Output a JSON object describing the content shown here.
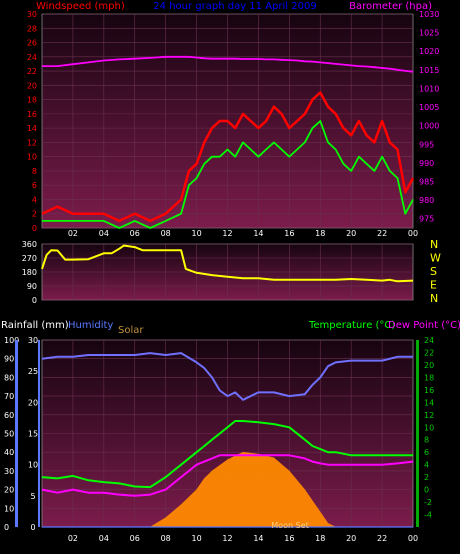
{
  "title": "24 hour graph day 11 April 2009",
  "colors": {
    "background": "#000000",
    "plot_top": "#1a0612",
    "plot_bottom": "#7a1a4a",
    "grid": "#6a3050",
    "windspeed": "#ff0000",
    "wind_avg": "#00ff00",
    "barometer": "#ff00ff",
    "direction": "#ffff00",
    "rainfall": "#5a78ff",
    "humidity": "#7070ff",
    "solar": "#ff8800",
    "temperature": "#00ff00",
    "dewpoint": "#ff00ff",
    "axis_left": "#ff0000",
    "axis_right_baro": "#ff00ff",
    "axis_temp": "#00cc00",
    "axis_hum": "#5a78ff",
    "dir_labels": "#ffff00",
    "title_color": "#0000ff"
  },
  "x_ticks": [
    "02",
    "04",
    "06",
    "08",
    "10",
    "12",
    "14",
    "16",
    "18",
    "20",
    "22",
    "00"
  ],
  "chart_data": [
    {
      "type": "line",
      "name": "wind-barometer",
      "labels": {
        "left_title": "Windspeed (mph)",
        "right_title": "Barometer (hpa)"
      },
      "y_left": {
        "min": 0,
        "max": 30,
        "ticks": [
          0,
          2,
          4,
          6,
          8,
          10,
          12,
          14,
          16,
          18,
          20,
          22,
          24,
          26,
          28,
          30
        ]
      },
      "y_right": {
        "min": 972.5,
        "max": 1030,
        "ticks": [
          975,
          980,
          985,
          990,
          995,
          1000,
          1005,
          1010,
          1015,
          1020,
          1025,
          1030
        ]
      },
      "hours": [
        0,
        1,
        2,
        3,
        4,
        5,
        6,
        7,
        8,
        9,
        9.5,
        10,
        10.5,
        11,
        11.5,
        12,
        12.5,
        13,
        13.5,
        14,
        14.5,
        15,
        15.5,
        16,
        16.5,
        17,
        17.5,
        18,
        18.5,
        19,
        19.5,
        20,
        20.5,
        21,
        21.5,
        22,
        22.5,
        23,
        23.5,
        24
      ],
      "series": [
        {
          "name": "Windspeed",
          "axis": "left",
          "values": [
            2,
            3,
            2,
            2,
            2,
            1,
            2,
            1,
            2,
            4,
            8,
            9,
            12,
            14,
            15,
            15,
            14,
            16,
            15,
            14,
            15,
            17,
            16,
            14,
            15,
            16,
            18,
            19,
            17,
            16,
            14,
            13,
            15,
            13,
            12,
            15,
            12,
            11,
            5,
            7
          ]
        },
        {
          "name": "Average",
          "axis": "left",
          "values": [
            1,
            1,
            1,
            1,
            1,
            0,
            1,
            0,
            1,
            2,
            6,
            7,
            9,
            10,
            10,
            11,
            10,
            12,
            11,
            10,
            11,
            12,
            11,
            10,
            11,
            12,
            14,
            15,
            12,
            11,
            9,
            8,
            10,
            9,
            8,
            10,
            8,
            7,
            2,
            4
          ]
        },
        {
          "name": "Barometer",
          "axis": "right",
          "values": [
            1016,
            1016,
            1016.5,
            1017,
            1017.5,
            1017.8,
            1018,
            1018.2,
            1018.5,
            1018.5,
            1018.5,
            1018.3,
            1018.1,
            1018,
            1018,
            1018,
            1018,
            1017.9,
            1017.9,
            1017.9,
            1017.8,
            1017.8,
            1017.7,
            1017.6,
            1017.5,
            1017.3,
            1017.2,
            1017,
            1016.8,
            1016.6,
            1016.4,
            1016.2,
            1016,
            1015.9,
            1015.7,
            1015.5,
            1015.3,
            1015,
            1014.7,
            1014.5
          ]
        }
      ]
    },
    {
      "type": "line",
      "name": "wind-direction",
      "y": {
        "min": 0,
        "max": 360,
        "ticks": [
          0,
          90,
          180,
          270,
          360
        ]
      },
      "direction_labels": [
        "N",
        "W",
        "S",
        "E",
        "N"
      ],
      "hours": [
        0,
        0.3,
        0.6,
        1,
        1.5,
        2,
        3,
        4,
        4.5,
        5,
        5.3,
        6,
        6.5,
        7,
        8,
        9,
        9.3,
        10,
        11,
        12,
        13,
        14,
        15,
        16,
        17,
        18,
        19,
        20,
        21,
        22,
        22.5,
        23,
        24
      ],
      "series": [
        {
          "name": "Direction",
          "values": [
            200,
            290,
            320,
            318,
            260,
            260,
            262,
            300,
            300,
            330,
            350,
            340,
            320,
            320,
            320,
            320,
            200,
            175,
            160,
            150,
            140,
            140,
            130,
            130,
            130,
            130,
            130,
            135,
            130,
            125,
            130,
            120,
            125
          ]
        }
      ]
    },
    {
      "type": "line",
      "name": "temp-humidity-rain-solar",
      "labels": {
        "left_title_rain": "Rainfall (mm)",
        "left_title_hum": "Humidity",
        "solar_title": "Solar",
        "right_title_temp": "Temperature (°C)",
        "right_title_dew": "Dew Point (°C)",
        "annotation": "Moon Set"
      },
      "y_rain": {
        "min": 0,
        "max": 100,
        "ticks": [
          0,
          10,
          20,
          30,
          40,
          50,
          60,
          70,
          80,
          90,
          100
        ]
      },
      "y_humidity": {
        "min": 0,
        "max": 30,
        "ticks": [
          0,
          5,
          10,
          15,
          20,
          25,
          30
        ]
      },
      "y_temp": {
        "min": -6,
        "max": 24,
        "ticks": [
          -4,
          -2,
          0,
          2,
          4,
          6,
          8,
          10,
          12,
          14,
          16,
          18,
          20,
          22,
          24
        ]
      },
      "hours": [
        0,
        1,
        2,
        3,
        4,
        5,
        6,
        7,
        8,
        9,
        10,
        10.5,
        11,
        11.5,
        12,
        12.5,
        13,
        14,
        15,
        16,
        17,
        17.5,
        18,
        18.5,
        19,
        20,
        21,
        22,
        23,
        24
      ],
      "series": [
        {
          "name": "Humidity",
          "axis": "humidity",
          "values": [
            90,
            91,
            91,
            92,
            92,
            92,
            92,
            93,
            92,
            93,
            88,
            85,
            80,
            73,
            70,
            72,
            68,
            72,
            72,
            70,
            71,
            76,
            80,
            86,
            88,
            89,
            89,
            89,
            91,
            91
          ]
        },
        {
          "name": "Temperature",
          "axis": "temp",
          "values": [
            2,
            1.8,
            2.2,
            1.5,
            1.2,
            1,
            0.5,
            0.4,
            2,
            4,
            6,
            7,
            8,
            9,
            10,
            11,
            11,
            10.8,
            10.5,
            10,
            8,
            7,
            6.5,
            6,
            6,
            5.5,
            5.5,
            5.5,
            5.5,
            5.5
          ]
        },
        {
          "name": "Dew Point",
          "axis": "temp",
          "values": [
            0,
            -0.5,
            0,
            -0.5,
            -0.5,
            -0.8,
            -1,
            -0.8,
            0,
            2,
            4,
            4.5,
            5,
            5.5,
            5.5,
            5.5,
            5.5,
            5.5,
            5.5,
            5.5,
            5,
            4.5,
            4.2,
            4,
            4,
            4,
            4,
            4,
            4.2,
            4.5
          ]
        },
        {
          "name": "Solar",
          "axis": "solar",
          "values": [
            0,
            0,
            0,
            0,
            0,
            0,
            0,
            0,
            5,
            12,
            20,
            26,
            30,
            33,
            36,
            38,
            40,
            39,
            37,
            30,
            20,
            14,
            8,
            2,
            0,
            0,
            0,
            0,
            0,
            0
          ]
        },
        {
          "name": "Rainfall",
          "axis": "rain",
          "values": [
            0,
            0,
            0,
            0,
            0,
            0,
            0,
            0,
            0,
            0,
            0,
            0,
            0,
            0,
            0,
            0,
            0,
            0,
            0,
            0,
            0,
            0,
            0,
            0,
            0,
            0,
            0,
            0,
            0,
            0
          ]
        }
      ]
    }
  ]
}
